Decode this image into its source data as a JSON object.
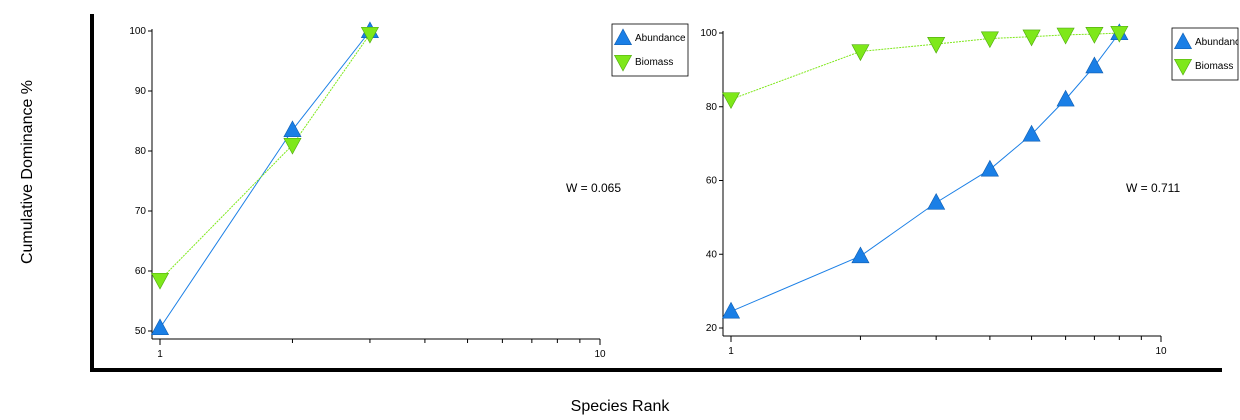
{
  "ylabel": "Cumulative Dominance %",
  "xlabel": "Species Rank",
  "colors": {
    "abundance": "#1a7fe6",
    "biomass": "#7ee81a",
    "axis": "#000000"
  },
  "chart_data": [
    {
      "type": "line",
      "xscale": "log",
      "xlim": [
        1,
        10
      ],
      "ylim": [
        50,
        100
      ],
      "yticks": [
        50,
        60,
        70,
        80,
        90,
        100
      ],
      "xtick_labels": [
        "1",
        "10"
      ],
      "legend": "top-right",
      "annotation": "W = 0.065",
      "series": [
        {
          "name": "Abundance",
          "x": [
            1,
            2,
            3
          ],
          "y": [
            50.5,
            83.5,
            100
          ]
        },
        {
          "name": "Biomass",
          "x": [
            1,
            2,
            3
          ],
          "y": [
            58.5,
            81,
            99.5
          ]
        }
      ]
    },
    {
      "type": "line",
      "xscale": "log",
      "xlim": [
        1,
        10
      ],
      "ylim": [
        20,
        100
      ],
      "yticks": [
        20,
        40,
        60,
        80,
        100
      ],
      "xtick_labels": [
        "1",
        "10"
      ],
      "legend": "top-right",
      "annotation": "W = 0.711",
      "series": [
        {
          "name": "Abundance",
          "x": [
            1,
            2,
            3,
            4,
            5,
            6,
            7,
            8
          ],
          "y": [
            24.5,
            39.5,
            54,
            63,
            72.5,
            82,
            91,
            100
          ]
        },
        {
          "name": "Biomass",
          "x": [
            1,
            2,
            3,
            4,
            5,
            6,
            7,
            8
          ],
          "y": [
            82,
            95,
            97,
            98.5,
            99,
            99.5,
            99.7,
            100
          ]
        }
      ]
    }
  ]
}
